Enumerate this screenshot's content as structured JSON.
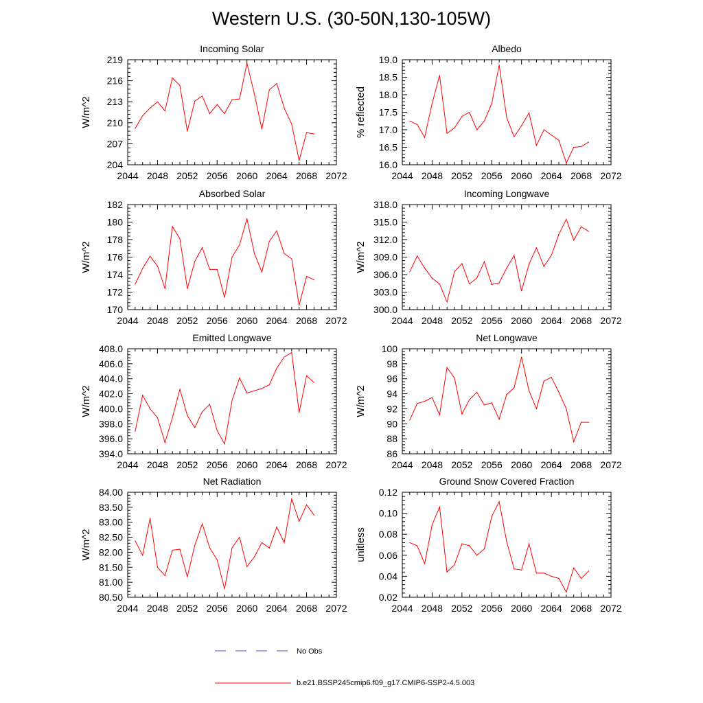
{
  "title": "Western U.S. (30-50N,130-105W)",
  "colors": {
    "model_line": "#ff0000",
    "obs_line": "#4b4bb4",
    "axis": "#000000"
  },
  "legend": [
    {
      "label": "No Obs",
      "style": "dashed",
      "color": "#4b4bb4"
    },
    {
      "label": "b.e21.BSSP245cmip6.f09_g17.CMIP6-SSP2-4.5.003",
      "style": "solid",
      "color": "#ff0000"
    }
  ],
  "chart_data": [
    {
      "type": "line",
      "title": "Incoming Solar",
      "ylabel": "W/m^2",
      "xlim": [
        2044,
        2072
      ],
      "ylim": [
        204,
        219
      ],
      "xticks": [
        "2044",
        "2048",
        "2052",
        "2056",
        "2060",
        "2064",
        "2068",
        "2072"
      ],
      "yticks": [
        "204",
        "207",
        "210",
        "213",
        "216",
        "219"
      ],
      "x": [
        2045,
        2046,
        2047,
        2048,
        2049,
        2050,
        2051,
        2052,
        2053,
        2054,
        2055,
        2056,
        2057,
        2058,
        2059,
        2060,
        2061,
        2062,
        2063,
        2064,
        2065,
        2066,
        2067,
        2068,
        2069
      ],
      "series": [
        {
          "name": "b.e21.BSSP245cmip6.f09_g17.CMIP6-SSP2-4.5.003",
          "values": [
            209.2,
            211.0,
            212.1,
            213.0,
            211.7,
            216.4,
            215.3,
            208.8,
            213.1,
            213.8,
            211.3,
            212.6,
            211.3,
            213.3,
            213.4,
            218.5,
            214.1,
            209.1,
            214.7,
            215.6,
            212.1,
            209.8,
            204.6,
            208.6,
            208.4
          ]
        }
      ]
    },
    {
      "type": "line",
      "title": "Albedo",
      "ylabel": "% reflected",
      "xlim": [
        2044,
        2072
      ],
      "ylim": [
        16.0,
        19.0
      ],
      "xticks": [
        "2044",
        "2048",
        "2052",
        "2056",
        "2060",
        "2064",
        "2068",
        "2072"
      ],
      "yticks": [
        "16.0",
        "16.5",
        "17.0",
        "17.5",
        "18.0",
        "18.5",
        "19.0"
      ],
      "x": [
        2045,
        2046,
        2047,
        2048,
        2049,
        2050,
        2051,
        2052,
        2053,
        2054,
        2055,
        2056,
        2057,
        2058,
        2059,
        2060,
        2061,
        2062,
        2063,
        2064,
        2065,
        2066,
        2067,
        2068,
        2069
      ],
      "series": [
        {
          "name": "b.e21.BSSP245cmip6.f09_g17.CMIP6-SSP2-4.5.003",
          "values": [
            17.25,
            17.15,
            16.78,
            17.75,
            18.55,
            16.9,
            17.05,
            17.38,
            17.5,
            17.0,
            17.25,
            17.75,
            18.85,
            17.35,
            16.8,
            17.12,
            17.48,
            16.55,
            17.0,
            16.85,
            16.7,
            16.05,
            16.5,
            16.52,
            16.65
          ]
        }
      ]
    },
    {
      "type": "line",
      "title": "Absorbed Solar",
      "ylabel": "W/m^2",
      "xlim": [
        2044,
        2072
      ],
      "ylim": [
        170,
        182
      ],
      "xticks": [
        "2044",
        "2048",
        "2052",
        "2056",
        "2060",
        "2064",
        "2068",
        "2072"
      ],
      "yticks": [
        "170",
        "172",
        "174",
        "176",
        "178",
        "180",
        "182"
      ],
      "x": [
        2045,
        2046,
        2047,
        2048,
        2049,
        2050,
        2051,
        2052,
        2053,
        2054,
        2055,
        2056,
        2057,
        2058,
        2059,
        2060,
        2061,
        2062,
        2063,
        2064,
        2065,
        2066,
        2067,
        2068,
        2069
      ],
      "series": [
        {
          "name": "b.e21.BSSP245cmip6.f09_g17.CMIP6-SSP2-4.5.003",
          "values": [
            172.9,
            174.7,
            176.1,
            175.0,
            172.4,
            179.5,
            178.1,
            172.4,
            175.5,
            177.1,
            174.6,
            174.6,
            171.4,
            176.0,
            177.4,
            180.4,
            176.4,
            174.3,
            177.8,
            179.0,
            176.4,
            175.8,
            170.5,
            173.8,
            173.4
          ]
        }
      ]
    },
    {
      "type": "line",
      "title": "Incoming Longwave",
      "ylabel": "W/m^2",
      "xlim": [
        2044,
        2072
      ],
      "ylim": [
        300.0,
        318.0
      ],
      "xticks": [
        "2044",
        "2048",
        "2052",
        "2056",
        "2060",
        "2064",
        "2068",
        "2072"
      ],
      "yticks": [
        "300.0",
        "303.0",
        "306.0",
        "309.0",
        "312.0",
        "315.0",
        "318.0"
      ],
      "x": [
        2045,
        2046,
        2047,
        2048,
        2049,
        2050,
        2051,
        2052,
        2053,
        2054,
        2055,
        2056,
        2057,
        2058,
        2059,
        2060,
        2061,
        2062,
        2063,
        2064,
        2065,
        2066,
        2067,
        2068,
        2069
      ],
      "series": [
        {
          "name": "b.e21.BSSP245cmip6.f09_g17.CMIP6-SSP2-4.5.003",
          "values": [
            306.5,
            309.2,
            307.1,
            305.4,
            304.4,
            301.3,
            306.5,
            307.9,
            304.4,
            305.4,
            308.2,
            304.3,
            304.6,
            307.1,
            309.3,
            303.2,
            307.8,
            310.6,
            307.4,
            309.3,
            312.9,
            315.5,
            311.9,
            314.2,
            313.4
          ]
        }
      ]
    },
    {
      "type": "line",
      "title": "Emitted Longwave",
      "ylabel": "W/m^2",
      "xlim": [
        2044,
        2072
      ],
      "ylim": [
        394.0,
        408.0
      ],
      "xticks": [
        "2044",
        "2048",
        "2052",
        "2056",
        "2060",
        "2064",
        "2068",
        "2072"
      ],
      "yticks": [
        "394.0",
        "396.0",
        "398.0",
        "400.0",
        "402.0",
        "404.0",
        "406.0",
        "408.0"
      ],
      "x": [
        2045,
        2046,
        2047,
        2048,
        2049,
        2050,
        2051,
        2052,
        2053,
        2054,
        2055,
        2056,
        2057,
        2058,
        2059,
        2060,
        2061,
        2062,
        2063,
        2064,
        2065,
        2066,
        2067,
        2068,
        2069
      ],
      "series": [
        {
          "name": "b.e21.BSSP245cmip6.f09_g17.CMIP6-SSP2-4.5.003",
          "values": [
            397.0,
            401.8,
            400.0,
            398.8,
            395.5,
            398.8,
            402.6,
            399.1,
            397.5,
            399.6,
            400.6,
            397.1,
            395.3,
            401.1,
            404.1,
            402.1,
            402.4,
            402.7,
            403.2,
            405.4,
            406.9,
            407.5,
            399.5,
            404.4,
            403.5
          ]
        }
      ]
    },
    {
      "type": "line",
      "title": "Net Longwave",
      "ylabel": "W/m^2",
      "xlim": [
        2044,
        2072
      ],
      "ylim": [
        86,
        100
      ],
      "xticks": [
        "2044",
        "2048",
        "2052",
        "2056",
        "2060",
        "2064",
        "2068",
        "2072"
      ],
      "yticks": [
        "86",
        "88",
        "90",
        "92",
        "94",
        "96",
        "98",
        "100"
      ],
      "x": [
        2045,
        2046,
        2047,
        2048,
        2049,
        2050,
        2051,
        2052,
        2053,
        2054,
        2055,
        2056,
        2057,
        2058,
        2059,
        2060,
        2061,
        2062,
        2063,
        2064,
        2065,
        2066,
        2067,
        2068,
        2069
      ],
      "series": [
        {
          "name": "b.e21.BSSP245cmip6.f09_g17.CMIP6-SSP2-4.5.003",
          "values": [
            90.5,
            92.7,
            93.0,
            93.5,
            91.2,
            97.5,
            96.1,
            91.3,
            93.2,
            94.2,
            92.5,
            92.8,
            90.6,
            93.9,
            94.8,
            98.9,
            94.4,
            92.0,
            95.7,
            96.2,
            94.2,
            92.0,
            87.6,
            90.2,
            90.2
          ]
        }
      ]
    },
    {
      "type": "line",
      "title": "Net Radiation",
      "ylabel": "W/m^2",
      "xlim": [
        2044,
        2072
      ],
      "ylim": [
        80.5,
        84.0
      ],
      "xticks": [
        "2044",
        "2048",
        "2052",
        "2056",
        "2060",
        "2064",
        "2068",
        "2072"
      ],
      "yticks": [
        "80.50",
        "81.00",
        "81.50",
        "82.00",
        "82.50",
        "83.00",
        "83.50",
        "84.00"
      ],
      "x": [
        2045,
        2046,
        2047,
        2048,
        2049,
        2050,
        2051,
        2052,
        2053,
        2054,
        2055,
        2056,
        2057,
        2058,
        2059,
        2060,
        2061,
        2062,
        2063,
        2064,
        2065,
        2066,
        2067,
        2068,
        2069
      ],
      "series": [
        {
          "name": "b.e21.BSSP245cmip6.f09_g17.CMIP6-SSP2-4.5.003",
          "values": [
            82.38,
            81.9,
            83.13,
            81.5,
            81.22,
            82.07,
            82.1,
            81.18,
            82.23,
            82.95,
            82.15,
            81.75,
            80.78,
            82.15,
            82.5,
            81.52,
            81.85,
            82.32,
            82.14,
            82.84,
            82.32,
            83.78,
            83.03,
            83.58,
            83.24
          ]
        }
      ]
    },
    {
      "type": "line",
      "title": "Ground Snow Covered Fraction",
      "ylabel": "unitless",
      "xlim": [
        2044,
        2072
      ],
      "ylim": [
        0.02,
        0.12
      ],
      "xticks": [
        "2044",
        "2048",
        "2052",
        "2056",
        "2060",
        "2064",
        "2068",
        "2072"
      ],
      "yticks": [
        "0.02",
        "0.04",
        "0.06",
        "0.08",
        "0.10",
        "0.12"
      ],
      "x": [
        2045,
        2046,
        2047,
        2048,
        2049,
        2050,
        2051,
        2052,
        2053,
        2054,
        2055,
        2056,
        2057,
        2058,
        2059,
        2060,
        2061,
        2062,
        2063,
        2064,
        2065,
        2066,
        2067,
        2068,
        2069
      ],
      "series": [
        {
          "name": "b.e21.BSSP245cmip6.f09_g17.CMIP6-SSP2-4.5.003",
          "values": [
            0.072,
            0.069,
            0.052,
            0.089,
            0.106,
            0.044,
            0.051,
            0.071,
            0.069,
            0.06,
            0.066,
            0.097,
            0.111,
            0.073,
            0.047,
            0.046,
            0.071,
            0.043,
            0.043,
            0.04,
            0.038,
            0.025,
            0.048,
            0.038,
            0.045
          ]
        }
      ]
    }
  ]
}
